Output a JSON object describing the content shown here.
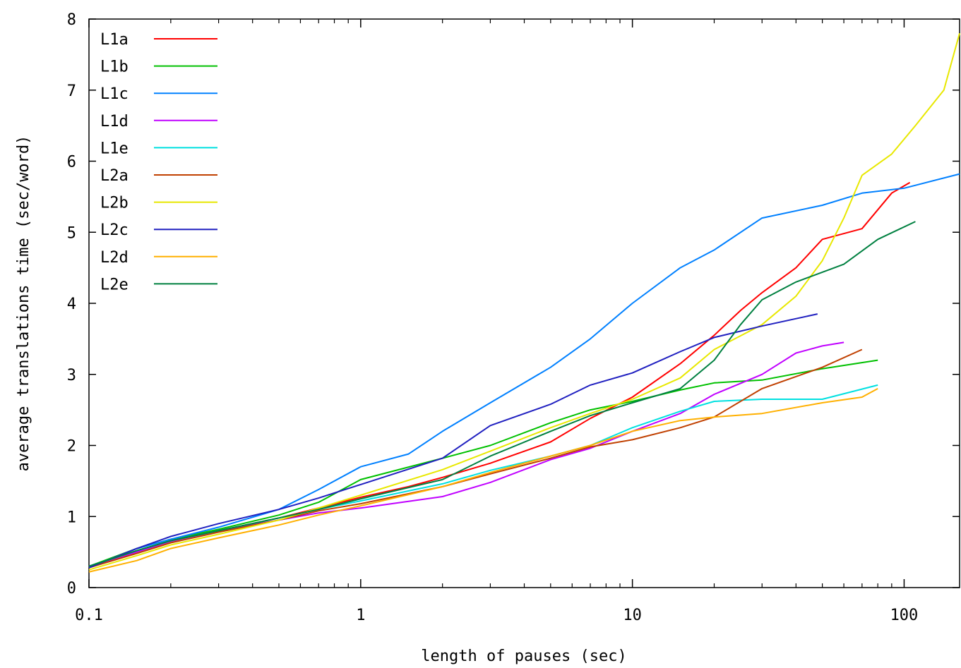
{
  "chart_data": {
    "type": "line",
    "xlabel": "length of pauses (sec)",
    "ylabel": "average translations time (sec/word)",
    "xscale": "log",
    "xlim": [
      0.1,
      160
    ],
    "ylim": [
      0,
      8
    ],
    "x_ticks": [
      {
        "value": 0.1,
        "label": "0.1"
      },
      {
        "value": 1,
        "label": "1"
      },
      {
        "value": 10,
        "label": "10"
      },
      {
        "value": 100,
        "label": "100"
      }
    ],
    "y_ticks": [
      {
        "value": 0,
        "label": "0"
      },
      {
        "value": 1,
        "label": "1"
      },
      {
        "value": 2,
        "label": "2"
      },
      {
        "value": 3,
        "label": "3"
      },
      {
        "value": 4,
        "label": "4"
      },
      {
        "value": 5,
        "label": "5"
      },
      {
        "value": 6,
        "label": "6"
      },
      {
        "value": 7,
        "label": "7"
      },
      {
        "value": 8,
        "label": "8"
      }
    ],
    "grid": false,
    "legend_position": "top-left",
    "series": [
      {
        "name": "L1a",
        "color": "#ff0000",
        "points": [
          [
            0.1,
            0.28
          ],
          [
            0.15,
            0.5
          ],
          [
            0.2,
            0.66
          ],
          [
            0.3,
            0.8
          ],
          [
            0.5,
            0.98
          ],
          [
            0.7,
            1.12
          ],
          [
            1,
            1.27
          ],
          [
            1.5,
            1.42
          ],
          [
            2,
            1.55
          ],
          [
            3,
            1.75
          ],
          [
            5,
            2.05
          ],
          [
            7,
            2.38
          ],
          [
            10,
            2.68
          ],
          [
            15,
            3.15
          ],
          [
            20,
            3.55
          ],
          [
            25,
            3.9
          ],
          [
            30,
            4.15
          ],
          [
            40,
            4.5
          ],
          [
            50,
            4.9
          ],
          [
            70,
            5.05
          ],
          [
            90,
            5.55
          ],
          [
            105,
            5.7
          ]
        ]
      },
      {
        "name": "L1b",
        "color": "#00c000",
        "points": [
          [
            0.1,
            0.3
          ],
          [
            0.15,
            0.55
          ],
          [
            0.2,
            0.68
          ],
          [
            0.3,
            0.82
          ],
          [
            0.5,
            1.02
          ],
          [
            0.7,
            1.2
          ],
          [
            1,
            1.52
          ],
          [
            2,
            1.82
          ],
          [
            3,
            2.0
          ],
          [
            5,
            2.32
          ],
          [
            7,
            2.5
          ],
          [
            10,
            2.62
          ],
          [
            15,
            2.78
          ],
          [
            20,
            2.88
          ],
          [
            30,
            2.92
          ],
          [
            50,
            3.08
          ],
          [
            80,
            3.2
          ]
        ]
      },
      {
        "name": "L1c",
        "color": "#0080ff",
        "points": [
          [
            0.1,
            0.28
          ],
          [
            0.15,
            0.55
          ],
          [
            0.2,
            0.68
          ],
          [
            0.3,
            0.85
          ],
          [
            0.5,
            1.1
          ],
          [
            0.7,
            1.38
          ],
          [
            1,
            1.7
          ],
          [
            1.5,
            1.88
          ],
          [
            2,
            2.2
          ],
          [
            3,
            2.6
          ],
          [
            5,
            3.1
          ],
          [
            7,
            3.5
          ],
          [
            10,
            4.0
          ],
          [
            15,
            4.5
          ],
          [
            20,
            4.75
          ],
          [
            30,
            5.2
          ],
          [
            50,
            5.38
          ],
          [
            70,
            5.55
          ],
          [
            100,
            5.62
          ],
          [
            160,
            5.82
          ]
        ]
      },
      {
        "name": "L1d",
        "color": "#c000ff",
        "points": [
          [
            0.1,
            0.3
          ],
          [
            0.15,
            0.5
          ],
          [
            0.2,
            0.65
          ],
          [
            0.3,
            0.8
          ],
          [
            0.5,
            0.95
          ],
          [
            0.7,
            1.05
          ],
          [
            1,
            1.12
          ],
          [
            2,
            1.28
          ],
          [
            3,
            1.48
          ],
          [
            5,
            1.8
          ],
          [
            7,
            1.96
          ],
          [
            10,
            2.2
          ],
          [
            15,
            2.45
          ],
          [
            20,
            2.72
          ],
          [
            30,
            3.0
          ],
          [
            40,
            3.3
          ],
          [
            50,
            3.4
          ],
          [
            60,
            3.45
          ]
        ]
      },
      {
        "name": "L1e",
        "color": "#00e0e0",
        "points": [
          [
            0.1,
            0.3
          ],
          [
            0.15,
            0.52
          ],
          [
            0.2,
            0.66
          ],
          [
            0.3,
            0.8
          ],
          [
            0.5,
            0.98
          ],
          [
            0.7,
            1.1
          ],
          [
            1,
            1.22
          ],
          [
            2,
            1.46
          ],
          [
            3,
            1.65
          ],
          [
            5,
            1.85
          ],
          [
            7,
            2.0
          ],
          [
            10,
            2.25
          ],
          [
            15,
            2.48
          ],
          [
            20,
            2.62
          ],
          [
            30,
            2.65
          ],
          [
            50,
            2.65
          ],
          [
            80,
            2.85
          ]
        ]
      },
      {
        "name": "L2a",
        "color": "#c04000",
        "points": [
          [
            0.1,
            0.28
          ],
          [
            0.15,
            0.48
          ],
          [
            0.2,
            0.63
          ],
          [
            0.3,
            0.78
          ],
          [
            0.5,
            0.95
          ],
          [
            0.7,
            1.08
          ],
          [
            1,
            1.18
          ],
          [
            2,
            1.42
          ],
          [
            3,
            1.6
          ],
          [
            5,
            1.82
          ],
          [
            7,
            1.98
          ],
          [
            10,
            2.08
          ],
          [
            15,
            2.25
          ],
          [
            20,
            2.4
          ],
          [
            30,
            2.8
          ],
          [
            50,
            3.1
          ],
          [
            70,
            3.35
          ]
        ]
      },
      {
        "name": "L2b",
        "color": "#e8e800",
        "points": [
          [
            0.1,
            0.25
          ],
          [
            0.15,
            0.45
          ],
          [
            0.2,
            0.6
          ],
          [
            0.3,
            0.75
          ],
          [
            0.5,
            0.95
          ],
          [
            0.7,
            1.12
          ],
          [
            1,
            1.3
          ],
          [
            2,
            1.66
          ],
          [
            3,
            1.92
          ],
          [
            5,
            2.25
          ],
          [
            7,
            2.45
          ],
          [
            10,
            2.65
          ],
          [
            15,
            2.95
          ],
          [
            20,
            3.35
          ],
          [
            30,
            3.7
          ],
          [
            40,
            4.1
          ],
          [
            50,
            4.6
          ],
          [
            60,
            5.2
          ],
          [
            70,
            5.8
          ],
          [
            90,
            6.1
          ],
          [
            110,
            6.5
          ],
          [
            140,
            7.0
          ],
          [
            160,
            7.8
          ]
        ]
      },
      {
        "name": "L2c",
        "color": "#2020c0",
        "points": [
          [
            0.1,
            0.28
          ],
          [
            0.15,
            0.55
          ],
          [
            0.2,
            0.72
          ],
          [
            0.3,
            0.9
          ],
          [
            0.5,
            1.1
          ],
          [
            0.7,
            1.26
          ],
          [
            1,
            1.45
          ],
          [
            2,
            1.82
          ],
          [
            3,
            2.28
          ],
          [
            5,
            2.58
          ],
          [
            7,
            2.85
          ],
          [
            10,
            3.02
          ],
          [
            15,
            3.32
          ],
          [
            20,
            3.52
          ],
          [
            30,
            3.68
          ],
          [
            48,
            3.85
          ]
        ]
      },
      {
        "name": "L2d",
        "color": "#ffb000",
        "points": [
          [
            0.1,
            0.22
          ],
          [
            0.15,
            0.38
          ],
          [
            0.2,
            0.55
          ],
          [
            0.3,
            0.7
          ],
          [
            0.5,
            0.88
          ],
          [
            0.7,
            1.02
          ],
          [
            1,
            1.15
          ],
          [
            2,
            1.42
          ],
          [
            3,
            1.62
          ],
          [
            5,
            1.85
          ],
          [
            7,
            2.0
          ],
          [
            10,
            2.2
          ],
          [
            15,
            2.35
          ],
          [
            20,
            2.4
          ],
          [
            30,
            2.45
          ],
          [
            50,
            2.6
          ],
          [
            70,
            2.68
          ],
          [
            80,
            2.8
          ]
        ]
      },
      {
        "name": "L2e",
        "color": "#008040",
        "points": [
          [
            0.1,
            0.3
          ],
          [
            0.15,
            0.52
          ],
          [
            0.2,
            0.66
          ],
          [
            0.3,
            0.8
          ],
          [
            0.5,
            0.98
          ],
          [
            0.7,
            1.1
          ],
          [
            1,
            1.25
          ],
          [
            2,
            1.52
          ],
          [
            3,
            1.85
          ],
          [
            5,
            2.2
          ],
          [
            7,
            2.42
          ],
          [
            10,
            2.6
          ],
          [
            15,
            2.8
          ],
          [
            20,
            3.2
          ],
          [
            25,
            3.7
          ],
          [
            30,
            4.05
          ],
          [
            40,
            4.3
          ],
          [
            60,
            4.55
          ],
          [
            80,
            4.9
          ],
          [
            110,
            5.15
          ]
        ]
      }
    ]
  }
}
